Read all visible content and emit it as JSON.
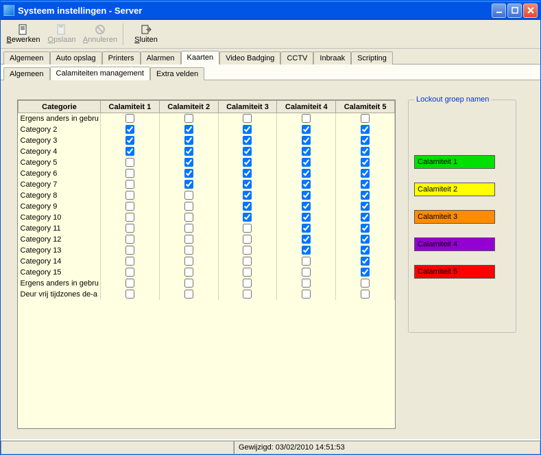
{
  "window": {
    "title": "Systeem instellingen - Server"
  },
  "toolbar": {
    "edit": {
      "label": "Bewerken",
      "accel": "B",
      "enabled": true
    },
    "save": {
      "label": "Opslaan",
      "accel": "O",
      "enabled": false
    },
    "cancel": {
      "label": "Annuleren",
      "accel": "A",
      "enabled": false
    },
    "close": {
      "label": "Sluiten",
      "accel": "S",
      "enabled": true
    }
  },
  "tabs": {
    "main": [
      "Algemeen",
      "Auto opslag",
      "Printers",
      "Alarmen",
      "Kaarten",
      "Video Badging",
      "CCTV",
      "Inbraak",
      "Scripting"
    ],
    "main_active_index": 4,
    "sub": [
      "Algemeen",
      "Calamiteiten management",
      "Extra velden"
    ],
    "sub_active_index": 1
  },
  "table": {
    "columns": [
      "Categorie",
      "Calamiteit 1",
      "Calamiteit 2",
      "Calamiteit 3",
      "Calamiteit 4",
      "Calamiteit 5"
    ],
    "rows": [
      {
        "label": "Ergens anders in gebru",
        "c": [
          false,
          false,
          false,
          false,
          false
        ]
      },
      {
        "label": "Category 2",
        "c": [
          true,
          true,
          true,
          true,
          true
        ]
      },
      {
        "label": "Category 3",
        "c": [
          true,
          true,
          true,
          true,
          true
        ]
      },
      {
        "label": "Category 4",
        "c": [
          true,
          true,
          true,
          true,
          true
        ]
      },
      {
        "label": "Category 5",
        "c": [
          false,
          true,
          true,
          true,
          true
        ]
      },
      {
        "label": "Category 6",
        "c": [
          false,
          true,
          true,
          true,
          true
        ]
      },
      {
        "label": "Category 7",
        "c": [
          false,
          true,
          true,
          true,
          true
        ]
      },
      {
        "label": "Category 8",
        "c": [
          false,
          false,
          true,
          true,
          true
        ]
      },
      {
        "label": "Category 9",
        "c": [
          false,
          false,
          true,
          true,
          true
        ]
      },
      {
        "label": "Category 10",
        "c": [
          false,
          false,
          true,
          true,
          true
        ]
      },
      {
        "label": "Category 11",
        "c": [
          false,
          false,
          false,
          true,
          true
        ]
      },
      {
        "label": "Category 12",
        "c": [
          false,
          false,
          false,
          true,
          true
        ]
      },
      {
        "label": "Category 13",
        "c": [
          false,
          false,
          false,
          true,
          true
        ]
      },
      {
        "label": "Category 14",
        "c": [
          false,
          false,
          false,
          false,
          true
        ]
      },
      {
        "label": "Category 15",
        "c": [
          false,
          false,
          false,
          false,
          true
        ]
      },
      {
        "label": "Ergens anders in gebru",
        "c": [
          false,
          false,
          false,
          false,
          false
        ]
      },
      {
        "label": "Deur vrij tijdzones de-a",
        "c": [
          false,
          false,
          false,
          false,
          false
        ]
      }
    ]
  },
  "lockout": {
    "legend": "Lockout groep namen",
    "items": [
      {
        "label": "Calamiteit 1",
        "bg": "#00e000",
        "fg": "#000000"
      },
      {
        "label": "Calamiteit 2",
        "bg": "#ffff00",
        "fg": "#000000"
      },
      {
        "label": "Calamiteit 3",
        "bg": "#ff8c00",
        "fg": "#000000"
      },
      {
        "label": "Calamiteit 4",
        "bg": "#9400d3",
        "fg": "#000000"
      },
      {
        "label": "Calamiteit 5",
        "bg": "#ff0000",
        "fg": "#000000"
      }
    ]
  },
  "statusbar": {
    "modified": "Gewijzigd: 03/02/2010 14:51:53"
  },
  "colors": {
    "window_bg": "#ece9d8",
    "table_bg": "#ffffe1",
    "titlebar_gradient_top": "#3a95ff",
    "titlebar_gradient_bottom": "#0055e5"
  }
}
